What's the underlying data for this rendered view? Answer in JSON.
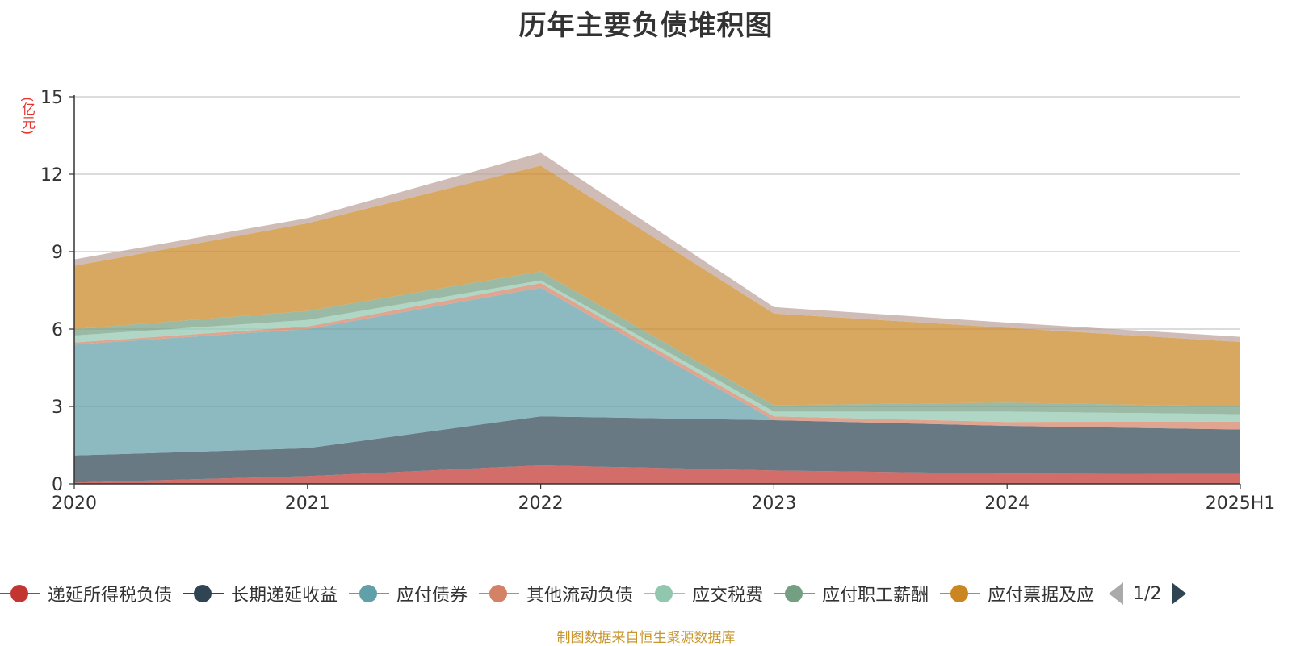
{
  "chart_data": {
    "type": "area",
    "stacked": true,
    "title": "历年主要负债堆积图",
    "unit_label": "(亿元)",
    "x": [
      "2020",
      "2021",
      "2022",
      "2023",
      "2024",
      "2025H1"
    ],
    "ylim": [
      0,
      15
    ],
    "yticks": [
      "0",
      "3",
      "6",
      "9",
      "12",
      "15"
    ],
    "grid": true,
    "legend_position": "bottom",
    "series": [
      {
        "name": "递延所得税负债",
        "color": "#c23531",
        "values": [
          0.05,
          0.3,
          0.72,
          0.52,
          0.4,
          0.38
        ]
      },
      {
        "name": "长期递延收益",
        "color": "#2f4554",
        "values": [
          1.05,
          1.08,
          1.9,
          1.95,
          1.85,
          1.73
        ]
      },
      {
        "name": "应付债券",
        "color": "#61a0a8",
        "values": [
          4.3,
          4.62,
          4.98,
          0.0,
          0.0,
          0.0
        ]
      },
      {
        "name": "其他流动负债",
        "color": "#d48265",
        "values": [
          0.08,
          0.1,
          0.18,
          0.15,
          0.15,
          0.3
        ]
      },
      {
        "name": "应交税费",
        "color": "#91c7ae",
        "values": [
          0.27,
          0.25,
          0.1,
          0.18,
          0.4,
          0.29
        ]
      },
      {
        "name": "应付职工薪酬",
        "color": "#749f83",
        "values": [
          0.25,
          0.35,
          0.35,
          0.25,
          0.35,
          0.3
        ]
      },
      {
        "name": "应付票据及应付账款",
        "color": "#ca8622",
        "values": [
          2.45,
          3.4,
          4.1,
          3.55,
          2.9,
          2.5
        ]
      },
      {
        "name": "",
        "color": "#bda29a",
        "values": [
          0.25,
          0.2,
          0.5,
          0.25,
          0.2,
          0.2
        ]
      }
    ]
  },
  "legend": {
    "items": [
      {
        "label": "递延所得税负债",
        "color": "#c23531"
      },
      {
        "label": "长期递延收益",
        "color": "#2f4554"
      },
      {
        "label": "应付债券",
        "color": "#61a0a8"
      },
      {
        "label": "其他流动负债",
        "color": "#d48265"
      },
      {
        "label": "应交税费",
        "color": "#91c7ae"
      },
      {
        "label": "应付职工薪酬",
        "color": "#749f83"
      },
      {
        "label": "应付票据及应",
        "color": "#ca8622"
      }
    ],
    "page_indicator": "1/2"
  },
  "source_note": "制图数据来自恒生聚源数据库"
}
